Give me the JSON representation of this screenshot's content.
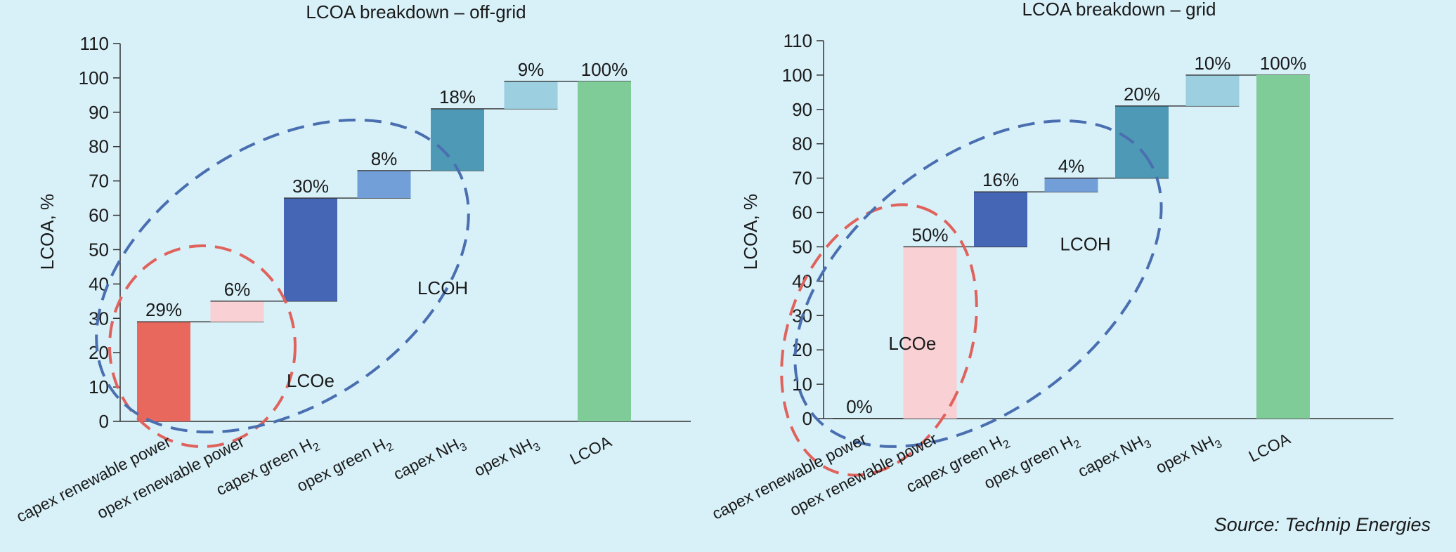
{
  "source": "Source: Technip Energies",
  "chart_data": [
    {
      "type": "waterfall",
      "title": "LCOA breakdown – off-grid",
      "ylabel": "LCOA, %",
      "ylim": [
        0,
        110
      ],
      "yticks": [
        0,
        10,
        20,
        30,
        40,
        50,
        60,
        70,
        80,
        90,
        100,
        110
      ],
      "categories": [
        [
          "capex renewable power"
        ],
        [
          "opex renewable power"
        ],
        [
          "capex green H",
          "2"
        ],
        [
          "opex green H",
          "2"
        ],
        [
          "capex NH",
          "3"
        ],
        [
          "opex NH",
          "3"
        ],
        [
          "LCOA"
        ]
      ],
      "values": [
        29,
        6,
        30,
        8,
        18,
        9,
        100
      ],
      "value_labels": [
        "29%",
        "6%",
        "30%",
        "8%",
        "18%",
        "9%",
        "100%"
      ],
      "bar_ranges": [
        [
          0,
          29
        ],
        [
          29,
          35
        ],
        [
          35,
          65
        ],
        [
          65,
          73
        ],
        [
          73,
          91
        ],
        [
          91,
          99
        ],
        [
          0,
          99
        ]
      ],
      "colors": [
        "#e8685e",
        "#f9d0d3",
        "#4466b5",
        "#729fd8",
        "#4e99b5",
        "#9ccfe0",
        "#80cc98"
      ],
      "annotations": [
        {
          "text": "LCOe",
          "color": "#e0625c",
          "x": 2.0,
          "y": 10
        },
        {
          "text": "LCOH",
          "color": "#4a6fb0",
          "x": 3.8,
          "y": 37
        }
      ],
      "grid": false
    },
    {
      "type": "waterfall",
      "title": "LCOA breakdown – grid",
      "ylabel": "LCOA, %",
      "ylim": [
        0,
        110
      ],
      "yticks": [
        0,
        10,
        20,
        30,
        40,
        50,
        60,
        70,
        80,
        90,
        100,
        110
      ],
      "categories": [
        [
          "capex renewable power"
        ],
        [
          "opex renewable power"
        ],
        [
          "capex green H",
          "2"
        ],
        [
          "opex green H",
          "2"
        ],
        [
          "capex NH",
          "3"
        ],
        [
          "opex NH",
          "3"
        ],
        [
          "LCOA"
        ]
      ],
      "values": [
        0,
        50,
        16,
        4,
        20,
        10,
        100
      ],
      "value_labels": [
        "0%",
        "50%",
        "16%",
        "4%",
        "20%",
        "10%",
        "100%"
      ],
      "bar_ranges": [
        [
          0,
          0
        ],
        [
          0,
          50
        ],
        [
          50,
          66
        ],
        [
          66,
          70
        ],
        [
          70,
          91
        ],
        [
          91,
          100
        ],
        [
          0,
          100
        ]
      ],
      "colors": [
        "#e8685e",
        "#f9d0d3",
        "#4466b5",
        "#729fd8",
        "#4e99b5",
        "#9ccfe0",
        "#80cc98"
      ],
      "annotations": [
        {
          "text": "LCOe",
          "color": "#e0625c",
          "x": 0.75,
          "y": 20
        },
        {
          "text": "LCOH",
          "color": "#4a6fb0",
          "x": 3.2,
          "y": 49
        }
      ],
      "grid": false
    }
  ]
}
